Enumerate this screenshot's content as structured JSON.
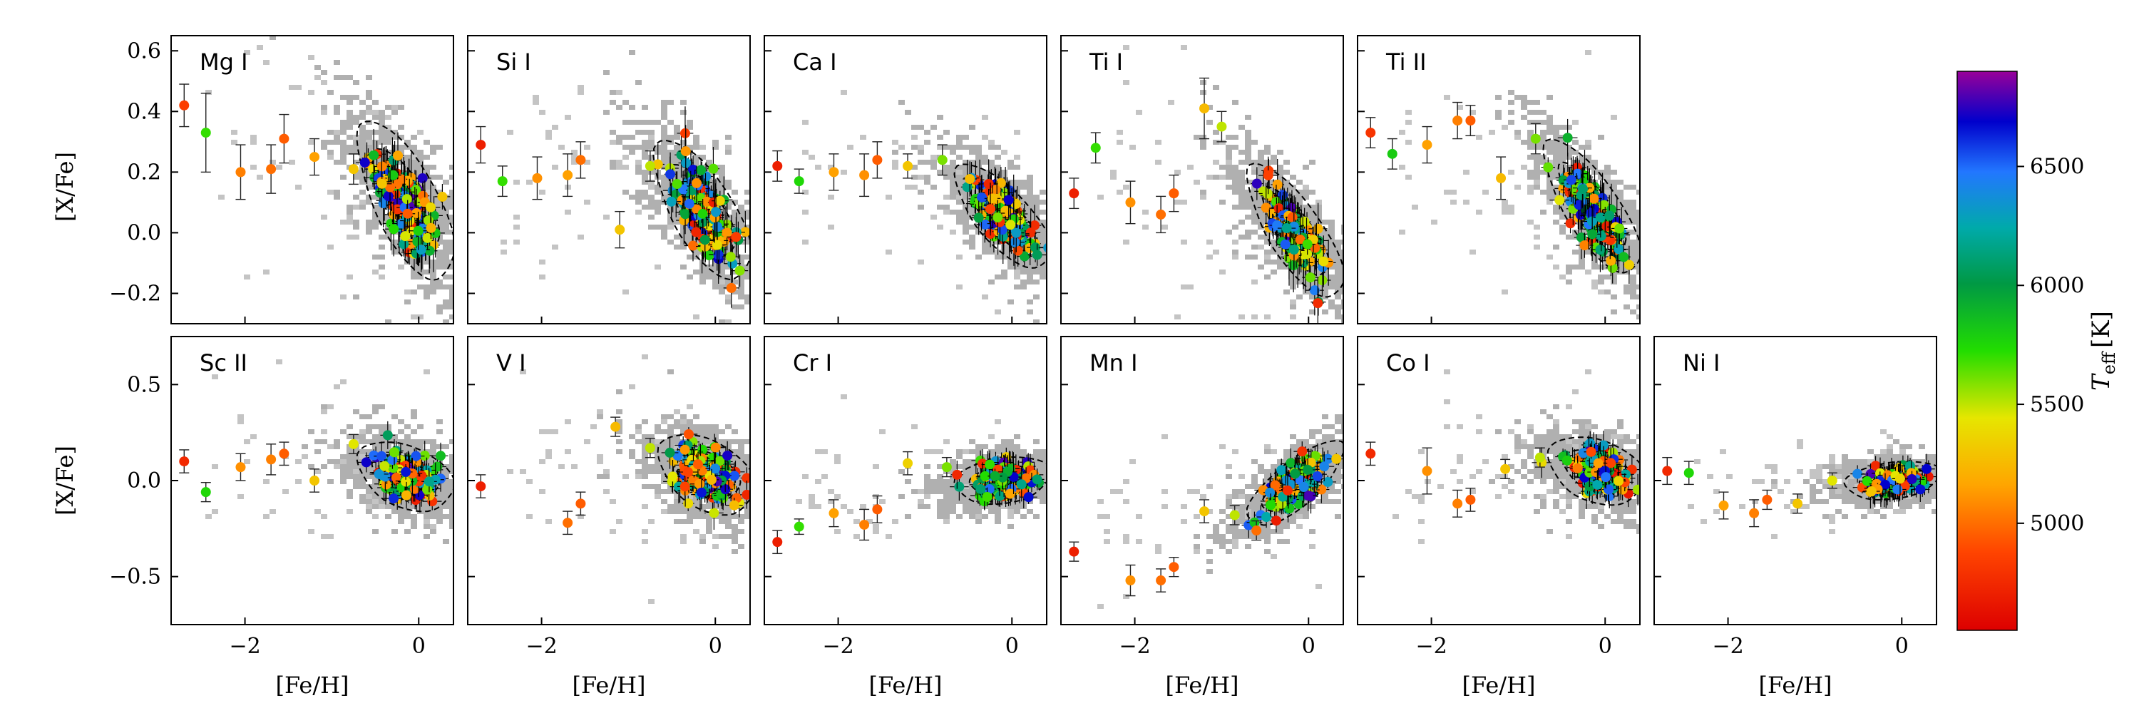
{
  "figure": {
    "colorbar": {
      "label": "T_eff [K]",
      "label_main": "T",
      "label_sub": "eff",
      "label_unit": "[K]",
      "range": [
        4550,
        6900
      ],
      "ticks": [
        5000,
        5500,
        6000,
        6500
      ],
      "tick_labels": [
        "5000",
        "5500",
        "6000",
        "6500"
      ]
    },
    "x_ticks": [
      -2,
      0
    ],
    "x_tick_labels": [
      "−2",
      "0"
    ],
    "xlabel": "[Fe/H]",
    "ylabel": "[X/Fe]",
    "rows": [
      {
        "ylim": [
          -0.3,
          0.65
        ],
        "y_ticks": [
          -0.2,
          0.0,
          0.2,
          0.4,
          0.6
        ],
        "y_tick_labels": [
          "−0.2",
          "0.0",
          "0.2",
          "0.4",
          "0.6"
        ]
      },
      {
        "ylim": [
          -0.75,
          0.75
        ],
        "y_ticks": [
          -0.5,
          0.0,
          0.5
        ],
        "y_tick_labels": [
          "−0.5",
          "0.0",
          "0.5"
        ]
      }
    ]
  },
  "chart_data": {
    "type": "scatter",
    "title": "",
    "xlabel": "[Fe/H]",
    "ylabel": "[X/Fe]",
    "xlim": [
      -2.85,
      0.4
    ],
    "color_by": "T_eff [K]",
    "panels": [
      {
        "element": "Mg I",
        "row": 0,
        "col": 0,
        "cluster": {
          "center_feh": -0.15,
          "center_xfe": 0.1,
          "slope": -0.32,
          "spread": 0.08
        },
        "metal_poor": [
          [
            -2.7,
            0.42,
            4850,
            0.07
          ],
          [
            -2.45,
            0.33,
            5700,
            0.13
          ],
          [
            -2.05,
            0.2,
            5050,
            0.09
          ],
          [
            -1.7,
            0.21,
            5000,
            0.08
          ],
          [
            -1.55,
            0.31,
            4950,
            0.08
          ],
          [
            -1.2,
            0.25,
            5150,
            0.06
          ],
          [
            -0.75,
            0.21,
            5300,
            0.05
          ]
        ]
      },
      {
        "element": "Si I",
        "row": 0,
        "col": 1,
        "cluster": {
          "center_feh": -0.15,
          "center_xfe": 0.07,
          "slope": -0.28,
          "spread": 0.07
        },
        "metal_poor": [
          [
            -2.7,
            0.29,
            4700,
            0.06
          ],
          [
            -2.45,
            0.17,
            5700,
            0.05
          ],
          [
            -2.05,
            0.18,
            5100,
            0.07
          ],
          [
            -1.7,
            0.19,
            5150,
            0.07
          ],
          [
            -1.55,
            0.24,
            5000,
            0.06
          ],
          [
            -1.1,
            0.01,
            5300,
            0.06
          ],
          [
            -0.75,
            0.22,
            5500,
            0.05
          ]
        ]
      },
      {
        "element": "Ca I",
        "row": 0,
        "col": 2,
        "cluster": {
          "center_feh": -0.1,
          "center_xfe": 0.05,
          "slope": -0.22,
          "spread": 0.05
        },
        "metal_poor": [
          [
            -2.7,
            0.22,
            4700,
            0.05
          ],
          [
            -2.45,
            0.17,
            5750,
            0.04
          ],
          [
            -2.05,
            0.2,
            5150,
            0.06
          ],
          [
            -1.7,
            0.19,
            5100,
            0.07
          ],
          [
            -1.55,
            0.24,
            4950,
            0.06
          ],
          [
            -1.2,
            0.22,
            5300,
            0.04
          ],
          [
            -0.8,
            0.24,
            5600,
            0.05
          ]
        ]
      },
      {
        "element": "Ti I",
        "row": 0,
        "col": 3,
        "cluster": {
          "center_feh": -0.15,
          "center_xfe": 0.0,
          "slope": -0.3,
          "spread": 0.06
        },
        "metal_poor": [
          [
            -2.7,
            0.13,
            4700,
            0.05
          ],
          [
            -2.45,
            0.28,
            5700,
            0.05
          ],
          [
            -2.05,
            0.1,
            5100,
            0.07
          ],
          [
            -1.7,
            0.06,
            5000,
            0.06
          ],
          [
            -1.55,
            0.13,
            4950,
            0.06
          ],
          [
            -1.2,
            0.41,
            5250,
            0.1
          ],
          [
            -1.0,
            0.35,
            5500,
            0.05
          ]
        ]
      },
      {
        "element": "Ti II",
        "row": 0,
        "col": 4,
        "cluster": {
          "center_feh": -0.15,
          "center_xfe": 0.08,
          "slope": -0.3,
          "spread": 0.06
        },
        "metal_poor": [
          [
            -2.7,
            0.33,
            4800,
            0.05
          ],
          [
            -2.45,
            0.26,
            5800,
            0.05
          ],
          [
            -2.05,
            0.29,
            5150,
            0.06
          ],
          [
            -1.7,
            0.37,
            5050,
            0.06
          ],
          [
            -1.55,
            0.37,
            4950,
            0.05
          ],
          [
            -1.2,
            0.18,
            5250,
            0.07
          ],
          [
            -0.8,
            0.31,
            5600,
            0.05
          ]
        ]
      },
      {
        "element": "Sc II",
        "row": 1,
        "col": 0,
        "cluster": {
          "center_feh": -0.15,
          "center_xfe": 0.02,
          "slope": -0.12,
          "spread": 0.07
        },
        "metal_poor": [
          [
            -2.7,
            0.1,
            4750,
            0.06
          ],
          [
            -2.45,
            -0.06,
            5750,
            0.05
          ],
          [
            -2.05,
            0.07,
            5100,
            0.07
          ],
          [
            -1.7,
            0.11,
            5050,
            0.08
          ],
          [
            -1.55,
            0.14,
            4950,
            0.06
          ],
          [
            -1.2,
            0.0,
            5300,
            0.06
          ],
          [
            -0.75,
            0.19,
            5450,
            0.05
          ]
        ]
      },
      {
        "element": "V I",
        "row": 1,
        "col": 1,
        "cluster": {
          "center_feh": -0.1,
          "center_xfe": 0.03,
          "slope": -0.15,
          "spread": 0.08
        },
        "metal_poor": [
          [
            -2.7,
            -0.03,
            4700,
            0.06
          ],
          [
            -2.45,
            null,
            null,
            null
          ],
          [
            -1.7,
            -0.22,
            5000,
            0.06
          ],
          [
            -1.55,
            -0.12,
            4950,
            0.06
          ],
          [
            -1.15,
            0.28,
            5250,
            0.05
          ],
          [
            -0.75,
            0.17,
            5500,
            0.05
          ]
        ]
      },
      {
        "element": "Cr I",
        "row": 1,
        "col": 2,
        "cluster": {
          "center_feh": -0.1,
          "center_xfe": 0.0,
          "slope": 0.05,
          "spread": 0.05
        },
        "metal_poor": [
          [
            -2.7,
            -0.32,
            4700,
            0.06
          ],
          [
            -2.45,
            -0.24,
            5700,
            0.04
          ],
          [
            -2.05,
            -0.17,
            5150,
            0.07
          ],
          [
            -1.7,
            -0.23,
            5050,
            0.08
          ],
          [
            -1.55,
            -0.15,
            4950,
            0.07
          ],
          [
            -1.2,
            0.09,
            5350,
            0.06
          ],
          [
            -0.75,
            0.07,
            5600,
            0.05
          ]
        ]
      },
      {
        "element": "Mn I",
        "row": 1,
        "col": 3,
        "cluster": {
          "center_feh": -0.15,
          "center_xfe": -0.02,
          "slope": 0.3,
          "spread": 0.06
        },
        "metal_poor": [
          [
            -2.7,
            -0.37,
            4700,
            0.05
          ],
          [
            -2.05,
            -0.52,
            5100,
            0.08
          ],
          [
            -1.7,
            -0.52,
            5000,
            0.06
          ],
          [
            -1.55,
            -0.45,
            4950,
            0.05
          ],
          [
            -1.2,
            -0.16,
            5300,
            0.06
          ],
          [
            -0.85,
            -0.18,
            5500,
            0.05
          ],
          [
            -0.6,
            -0.26,
            5000,
            0.05
          ]
        ]
      },
      {
        "element": "Co I",
        "row": 1,
        "col": 4,
        "cluster": {
          "center_feh": -0.1,
          "center_xfe": 0.05,
          "slope": -0.1,
          "spread": 0.07
        },
        "metal_poor": [
          [
            -2.7,
            0.14,
            4750,
            0.06
          ],
          [
            -2.05,
            0.05,
            5100,
            0.12
          ],
          [
            -1.7,
            -0.12,
            5050,
            0.07
          ],
          [
            -1.55,
            -0.1,
            4950,
            0.06
          ],
          [
            -1.15,
            0.06,
            5300,
            0.05
          ],
          [
            -0.75,
            0.12,
            5500,
            0.05
          ]
        ]
      },
      {
        "element": "Ni I",
        "row": 1,
        "col": 5,
        "cluster": {
          "center_feh": -0.1,
          "center_xfe": 0.0,
          "slope": 0.05,
          "spread": 0.04
        },
        "metal_poor": [
          [
            -2.7,
            0.05,
            4750,
            0.07
          ],
          [
            -2.45,
            0.04,
            5750,
            0.06
          ],
          [
            -2.05,
            -0.13,
            5150,
            0.07
          ],
          [
            -1.7,
            -0.17,
            5050,
            0.07
          ],
          [
            -1.55,
            -0.1,
            4950,
            0.05
          ],
          [
            -1.2,
            -0.12,
            5300,
            0.05
          ],
          [
            -0.8,
            0.0,
            5450,
            0.04
          ]
        ]
      }
    ]
  }
}
